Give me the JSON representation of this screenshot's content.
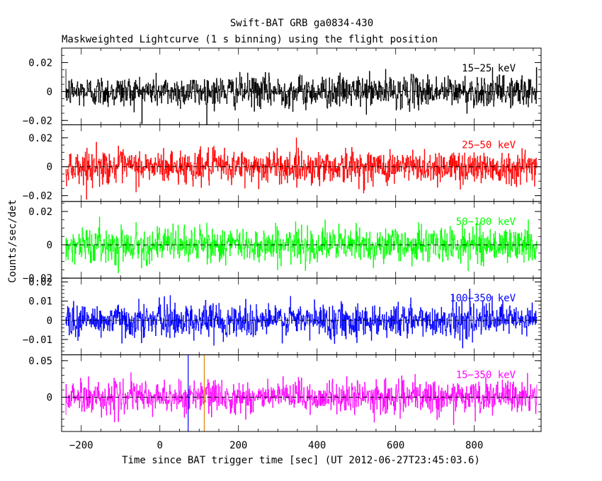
{
  "title": "Swift-BAT GRB ga0834-430",
  "subtitle": "Maskweighted Lightcurve (1 s binning) using the flight position",
  "chart_data": {
    "type": "line",
    "xlabel": "Time since BAT trigger time [sec] (UT 2012-06-27T23:45:03.6)",
    "ylabel": "Counts/sec/det",
    "xlim": [
      -250,
      970
    ],
    "x_range": [
      -240,
      960
    ],
    "x_step": 1,
    "x_ticks": [
      -200,
      0,
      200,
      400,
      600,
      800
    ],
    "x_tick_labels": [
      "−200",
      "0",
      "200",
      "400",
      "600",
      "800"
    ],
    "zero_line": "dashed",
    "markers": [
      {
        "x": 72,
        "color": "#0000ff"
      },
      {
        "x": 113,
        "color": "#e08000"
      }
    ],
    "panels": [
      {
        "label": "15−25 keV",
        "color": "#000000",
        "ylim": [
          -0.023,
          0.03
        ],
        "sigma": 0.0055,
        "yticks": [
          -0.02,
          0,
          0.02
        ],
        "ytick_labels": [
          "−0.02",
          "0",
          "0.02"
        ]
      },
      {
        "label": "25−50 keV",
        "color": "#ff0000",
        "ylim": [
          -0.024,
          0.029
        ],
        "sigma": 0.0058,
        "yticks": [
          -0.02,
          0,
          0.02
        ],
        "ytick_labels": [
          "−0.02",
          "0",
          "0.02"
        ]
      },
      {
        "label": "50−100 keV",
        "color": "#00ff00",
        "ylim": [
          -0.02,
          0.026
        ],
        "sigma": 0.0052,
        "yticks": [
          -0.02,
          0,
          0.02
        ],
        "ytick_labels": [
          "−0.02",
          "0",
          "0.02"
        ]
      },
      {
        "label": "100−350 keV",
        "color": "#0000ff",
        "ylim": [
          -0.018,
          0.022
        ],
        "sigma": 0.0045,
        "yticks": [
          -0.01,
          0,
          0.01,
          0.02
        ],
        "ytick_labels": [
          "−0.01",
          "0",
          "0.01",
          "0.02"
        ]
      },
      {
        "label": "15−350 keV",
        "color": "#ff00ff",
        "ylim": [
          -0.047,
          0.058
        ],
        "sigma": 0.011,
        "yticks": [
          0,
          0.05
        ],
        "ytick_labels": [
          "0",
          "0.05"
        ]
      }
    ]
  }
}
